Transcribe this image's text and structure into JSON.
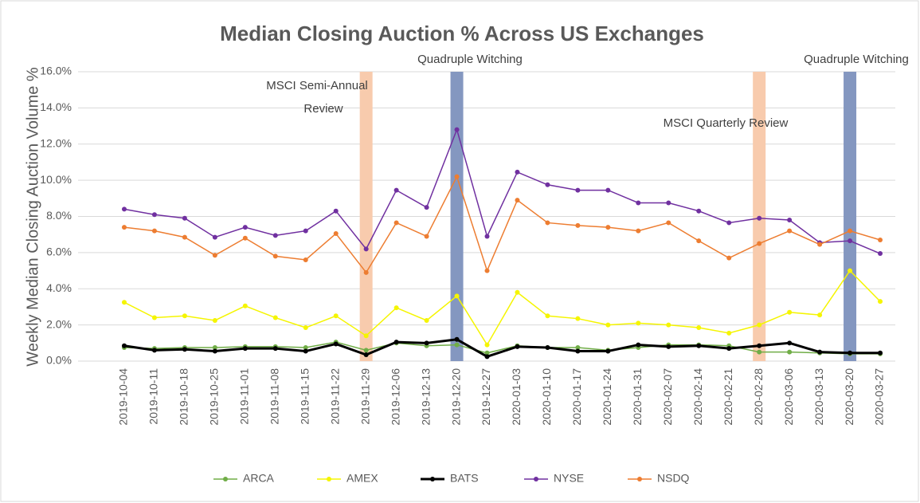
{
  "chart_data": {
    "type": "line",
    "title": "Median Closing Auction % Across US Exchanges",
    "y_label": "Weekly Median Closing Auction Volume %",
    "categories": [
      "2019-10-04",
      "2019-10-11",
      "2019-10-18",
      "2019-10-25",
      "2019-11-01",
      "2019-11-08",
      "2019-11-15",
      "2019-11-22",
      "2019-11-29",
      "2019-12-06",
      "2019-12-13",
      "2019-12-20",
      "2019-12-27",
      "2020-01-03",
      "2020-01-10",
      "2020-01-17",
      "2020-01-24",
      "2020-01-31",
      "2020-02-07",
      "2020-02-14",
      "2020-02-21",
      "2020-02-28",
      "2020-03-06",
      "2020-03-13",
      "2020-03-20",
      "2020-03-27"
    ],
    "series": [
      {
        "name": "ARCA",
        "color": "#70ad47",
        "values": [
          0.75,
          0.7,
          0.75,
          0.75,
          0.8,
          0.8,
          0.75,
          1.05,
          0.6,
          1.0,
          0.85,
          0.9,
          0.45,
          0.85,
          0.75,
          0.75,
          0.6,
          0.75,
          0.9,
          0.9,
          0.85,
          0.5,
          0.5,
          0.45,
          0.4,
          0.4
        ]
      },
      {
        "name": "AMEX",
        "color": "#f5f500",
        "values": [
          3.25,
          2.4,
          2.5,
          2.25,
          3.05,
          2.4,
          1.85,
          2.5,
          1.4,
          2.95,
          2.25,
          3.6,
          0.9,
          3.8,
          2.5,
          2.35,
          2.0,
          2.1,
          2.0,
          1.85,
          1.55,
          2.0,
          2.7,
          2.55,
          5.0,
          3.3
        ]
      },
      {
        "name": "BATS",
        "color": "#000000",
        "values": [
          0.85,
          0.6,
          0.65,
          0.55,
          0.7,
          0.7,
          0.55,
          0.95,
          0.35,
          1.05,
          1.0,
          1.2,
          0.25,
          0.8,
          0.75,
          0.55,
          0.55,
          0.9,
          0.8,
          0.85,
          0.7,
          0.85,
          1.0,
          0.5,
          0.45,
          0.45
        ]
      },
      {
        "name": "NYSE",
        "color": "#7030a0",
        "values": [
          8.4,
          8.1,
          7.9,
          6.85,
          7.4,
          6.95,
          7.2,
          8.3,
          6.2,
          9.45,
          8.5,
          12.8,
          6.9,
          10.45,
          9.75,
          9.45,
          9.45,
          8.75,
          8.75,
          8.3,
          7.65,
          7.9,
          7.8,
          6.55,
          6.65,
          5.95
        ]
      },
      {
        "name": "NSDQ",
        "color": "#ed7d31",
        "values": [
          7.4,
          7.2,
          6.85,
          5.85,
          6.8,
          5.8,
          5.6,
          7.05,
          4.9,
          7.65,
          6.9,
          10.2,
          5.0,
          8.9,
          7.65,
          7.5,
          7.4,
          7.2,
          7.65,
          6.65,
          5.7,
          6.5,
          7.2,
          6.45,
          7.2,
          6.7
        ]
      }
    ],
    "ylim": [
      0,
      16
    ],
    "yticks": [
      {
        "value": 0,
        "label": "0.0%"
      },
      {
        "value": 2,
        "label": "2.0%"
      },
      {
        "value": 4,
        "label": "4.0%"
      },
      {
        "value": 6,
        "label": "6.0%"
      },
      {
        "value": 8,
        "label": "8.0%"
      },
      {
        "value": 10,
        "label": "10.0%"
      },
      {
        "value": 12,
        "label": "12.0%"
      },
      {
        "value": 14,
        "label": "14.0%"
      },
      {
        "value": 16,
        "label": "16.0%"
      }
    ],
    "grid": true,
    "legend": "bottom",
    "highlights": [
      {
        "category": "2019-11-29",
        "color": "#f8cbad"
      },
      {
        "category": "2019-12-20",
        "color": "#8497c0"
      },
      {
        "category": "2020-02-28",
        "color": "#f8cbad"
      },
      {
        "category": "2020-03-20",
        "color": "#8497c0"
      }
    ],
    "annotations": [
      {
        "lines": [
          "MSCI Semi-Annual",
          "Review"
        ]
      },
      {
        "lines": [
          "Quadruple Witching"
        ]
      },
      {
        "lines": [
          "MSCI Quarterly Review"
        ]
      },
      {
        "lines": [
          "Quadruple Witching"
        ]
      }
    ]
  }
}
